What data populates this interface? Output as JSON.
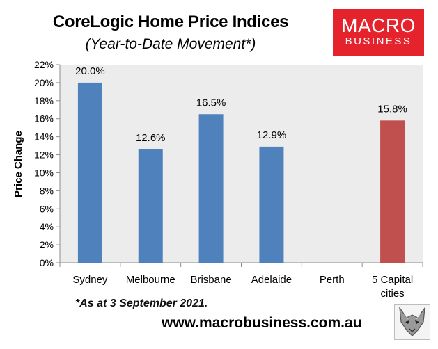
{
  "header": {
    "title": "CoreLogic Home Price Indices",
    "subtitle": "(Year-to-Date Movement*)"
  },
  "logo": {
    "line1": "MACRO",
    "line2": "BUSINESS",
    "color": "#e4232d"
  },
  "footer": {
    "footnote": "*As at 3 September 2021.",
    "website": "www.macrobusiness.com.au",
    "emblem_icon": "wolf-head-icon"
  },
  "colors": {
    "bar_default": "#4f81bd",
    "bar_highlight": "#c0504d",
    "plot_background": "#ececec"
  },
  "chart_data": {
    "type": "bar",
    "title": "CoreLogic Home Price Indices",
    "subtitle": "(Year-to-Date Movement*)",
    "xlabel": "",
    "ylabel": "Price Change",
    "ylim": [
      0,
      22
    ],
    "y_ticks": [
      0,
      2,
      4,
      6,
      8,
      10,
      12,
      14,
      16,
      18,
      20,
      22
    ],
    "y_tick_labels": [
      "0%",
      "2%",
      "4%",
      "6%",
      "8%",
      "10%",
      "12%",
      "14%",
      "16%",
      "18%",
      "20%",
      "22%"
    ],
    "categories": [
      [
        "Sydney"
      ],
      [
        "Melbourne"
      ],
      [
        "Brisbane"
      ],
      [
        "Adelaide"
      ],
      [
        "Perth"
      ],
      [
        "5 Capital",
        "cities"
      ]
    ],
    "values": [
      20.0,
      12.6,
      16.5,
      12.9,
      null,
      15.8
    ],
    "data_labels": [
      "20.0%",
      "12.6%",
      "16.5%",
      "12.9%",
      "",
      "15.8%"
    ],
    "highlight_index": 5,
    "grid": false,
    "legend": "none"
  }
}
